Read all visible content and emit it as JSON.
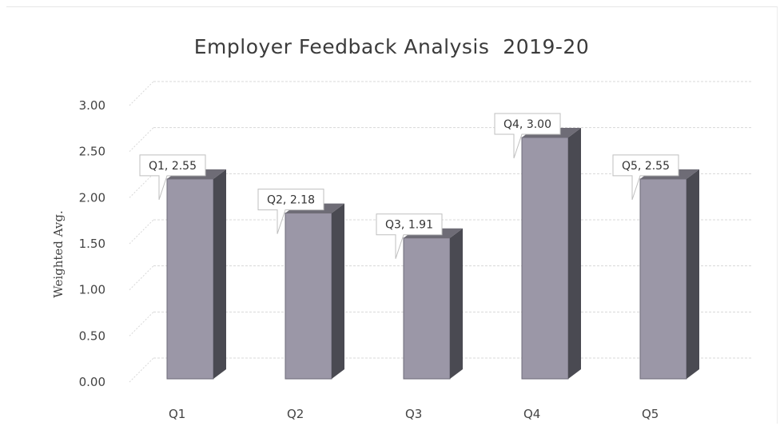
{
  "chart_data": {
    "type": "bar",
    "title": "Employer Feedback Analysis  2019-20",
    "xlabel": "",
    "ylabel": "Weighted Avg.",
    "categories": [
      "Q1",
      "Q2",
      "Q3",
      "Q4",
      "Q5"
    ],
    "values": [
      2.55,
      2.18,
      1.91,
      3.0,
      2.55
    ],
    "data_labels": [
      "Q1, 2.55",
      "Q2, 2.18",
      "Q3, 1.91",
      "Q4, 3.00",
      "Q5, 2.55"
    ],
    "yticks": [
      "0.00",
      "0.50",
      "1.00",
      "1.50",
      "2.00",
      "2.50",
      "3.00"
    ],
    "ylim": [
      0,
      3.0
    ],
    "grid": true,
    "legend": "none",
    "style": "3d-column",
    "colors": {
      "bar_front": "#9b97a7",
      "bar_side": "#4a4a52",
      "bar_top": "#6e6c76",
      "grid": "#d8d8d8"
    }
  }
}
